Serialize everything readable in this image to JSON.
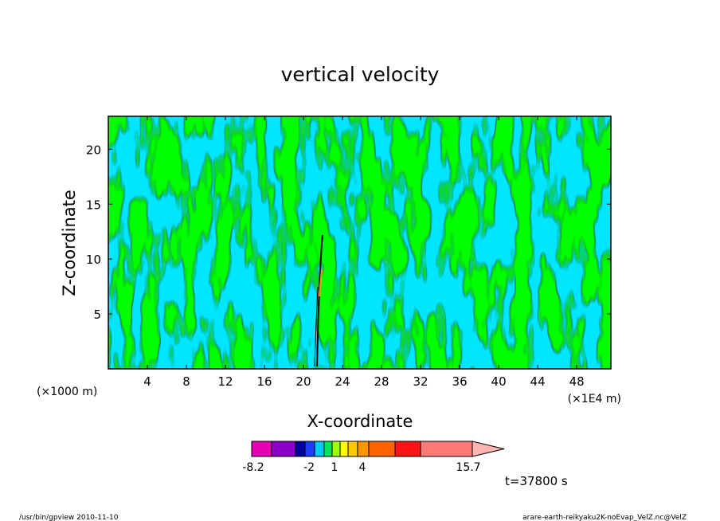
{
  "chart_data": {
    "type": "heatmap",
    "title": "vertical velocity",
    "xlabel": "X-coordinate",
    "ylabel": "Z-coordinate",
    "x_unit_left": "(×1000 m)",
    "x_unit_right": "(×1E4 m)",
    "xlim": [
      0,
      51.5
    ],
    "ylim": [
      0,
      23
    ],
    "x_ticks": [
      "4",
      "8",
      "12",
      "16",
      "20",
      "24",
      "28",
      "32",
      "36",
      "40",
      "44",
      "48"
    ],
    "y_ticks": [
      "5",
      "10",
      "15",
      "20"
    ],
    "colorbar": {
      "labels": [
        "-8.2",
        "-2",
        "1",
        "4",
        "15.7"
      ],
      "colors": [
        "#e600b4",
        "#8a00c8",
        "#0000a0",
        "#1e3cff",
        "#00c8ff",
        "#00e65a",
        "#a0ff00",
        "#ffff00",
        "#ffc800",
        "#ff9600",
        "#ff6400",
        "#ff1414",
        "#ff7878"
      ]
    },
    "time_label": "t=37800 s"
  },
  "footer": {
    "left": "/usr/bin/gpview   2010-11-10",
    "right": "arare-earth-reikyaku2K-noEvap_VelZ.nc@VelZ"
  }
}
